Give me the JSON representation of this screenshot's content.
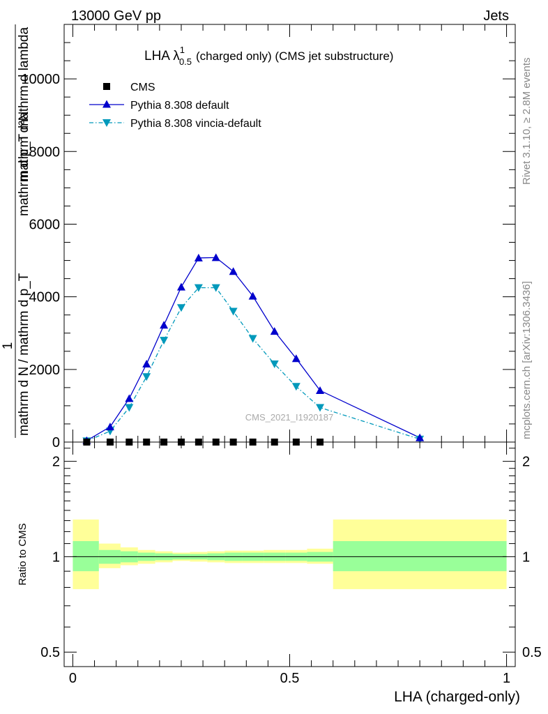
{
  "header": {
    "energy_label": "13000 GeV pp",
    "category_label": "Jets"
  },
  "side_labels": {
    "rivet": "Rivet 3.1.10, ≥ 2.8M events",
    "mcplots": "mcplots.cern.ch [arXiv:1306.3436]"
  },
  "chart_data": [
    {
      "type": "scatter",
      "panel": "main",
      "title": "LHA λ",
      "title_super": "1",
      "title_sub": "0.5",
      "title_suffix": "(charged only) (CMS jet substructure)",
      "ylabel_numerator": "mathrm d²N",
      "ylabel_denominator": "mathrm d p_T mathrm d lambda",
      "ylabel_left_numerator": "1",
      "ylabel_left_denominator": "mathrm d N / mathrm d p_T",
      "ylabel_sub": "T",
      "watermark": "CMS_2021_I1920187",
      "xlim": [
        -0.02,
        1.02
      ],
      "ylim": [
        0,
        11500
      ],
      "yticks": [
        0,
        2000,
        4000,
        6000,
        8000,
        10000
      ],
      "ytick_labels": [
        "0",
        "2000",
        "4000",
        "6000",
        "8000",
        "10000"
      ],
      "legend_position": "top-left",
      "x": [
        0.032,
        0.086,
        0.13,
        0.17,
        0.21,
        0.25,
        0.29,
        0.33,
        0.37,
        0.415,
        0.465,
        0.515,
        0.57,
        0.8
      ],
      "series": [
        {
          "name": "CMS",
          "marker": "square",
          "color": "#000000",
          "values": [
            0,
            0,
            0,
            0,
            0,
            0,
            0,
            0,
            0,
            0,
            0,
            0,
            0,
            0
          ]
        },
        {
          "name": "Pythia 8.308 default",
          "marker": "triangle-up",
          "line": "solid",
          "color": "#0000cc",
          "values": [
            40,
            420,
            1200,
            2150,
            3220,
            4270,
            5070,
            5080,
            4700,
            4020,
            3050,
            2300,
            1420,
            120
          ]
        },
        {
          "name": "Pythia 8.308 vincia-default",
          "marker": "triangle-down",
          "line": "dash-dot",
          "color": "#0099bb",
          "values": [
            30,
            300,
            950,
            1800,
            2800,
            3700,
            4250,
            4250,
            3600,
            2850,
            2150,
            1530,
            950,
            80
          ]
        }
      ]
    },
    {
      "type": "area",
      "panel": "ratio",
      "ylabel": "Ratio to CMS",
      "xlabel": "LHA (charged-only)",
      "ylim": [
        0.45,
        2.3
      ],
      "xlim": [
        -0.02,
        1.02
      ],
      "yticks": [
        0.5,
        1,
        2
      ],
      "ytick_labels": [
        "0.5",
        "1",
        "2"
      ],
      "xticks": [
        0,
        0.5,
        1
      ],
      "xtick_labels": [
        "0",
        "0.5",
        "1"
      ],
      "reference_line": 1,
      "bins": [
        {
          "x0": 0.0,
          "x1": 0.06,
          "inner": [
            0.9,
            1.12
          ],
          "outer": [
            0.79,
            1.31
          ]
        },
        {
          "x0": 0.06,
          "x1": 0.11,
          "inner": [
            0.95,
            1.05
          ],
          "outer": [
            0.92,
            1.1
          ]
        },
        {
          "x0": 0.11,
          "x1": 0.15,
          "inner": [
            0.96,
            1.04
          ],
          "outer": [
            0.94,
            1.07
          ]
        },
        {
          "x0": 0.15,
          "x1": 0.19,
          "inner": [
            0.97,
            1.03
          ],
          "outer": [
            0.95,
            1.05
          ]
        },
        {
          "x0": 0.19,
          "x1": 0.23,
          "inner": [
            0.975,
            1.025
          ],
          "outer": [
            0.96,
            1.04
          ]
        },
        {
          "x0": 0.23,
          "x1": 0.27,
          "inner": [
            0.98,
            1.02
          ],
          "outer": [
            0.97,
            1.03
          ]
        },
        {
          "x0": 0.27,
          "x1": 0.31,
          "inner": [
            0.98,
            1.02
          ],
          "outer": [
            0.965,
            1.035
          ]
        },
        {
          "x0": 0.31,
          "x1": 0.35,
          "inner": [
            0.975,
            1.025
          ],
          "outer": [
            0.96,
            1.04
          ]
        },
        {
          "x0": 0.35,
          "x1": 0.39,
          "inner": [
            0.97,
            1.03
          ],
          "outer": [
            0.955,
            1.045
          ]
        },
        {
          "x0": 0.39,
          "x1": 0.44,
          "inner": [
            0.97,
            1.03
          ],
          "outer": [
            0.955,
            1.045
          ]
        },
        {
          "x0": 0.44,
          "x1": 0.49,
          "inner": [
            0.97,
            1.03
          ],
          "outer": [
            0.955,
            1.05
          ]
        },
        {
          "x0": 0.49,
          "x1": 0.54,
          "inner": [
            0.97,
            1.03
          ],
          "outer": [
            0.955,
            1.05
          ]
        },
        {
          "x0": 0.54,
          "x1": 0.6,
          "inner": [
            0.965,
            1.035
          ],
          "outer": [
            0.95,
            1.06
          ]
        },
        {
          "x0": 0.6,
          "x1": 1.0,
          "inner": [
            0.9,
            1.12
          ],
          "outer": [
            0.79,
            1.31
          ]
        }
      ],
      "inner_color": "#99ff99",
      "outer_color": "#ffff99"
    }
  ]
}
